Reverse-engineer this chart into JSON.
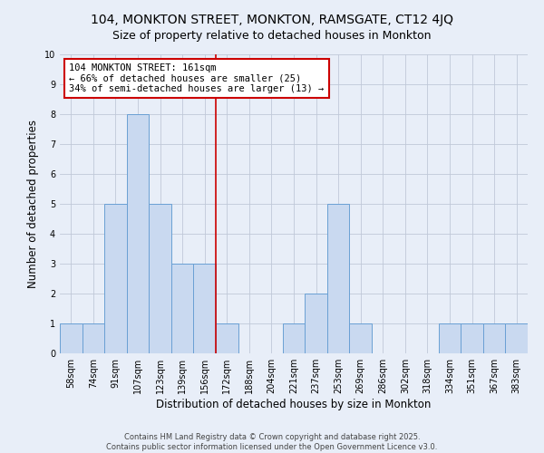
{
  "title": "104, MONKTON STREET, MONKTON, RAMSGATE, CT12 4JQ",
  "subtitle": "Size of property relative to detached houses in Monkton",
  "xlabel": "Distribution of detached houses by size in Monkton",
  "ylabel": "Number of detached properties",
  "bin_labels": [
    "58sqm",
    "74sqm",
    "91sqm",
    "107sqm",
    "123sqm",
    "139sqm",
    "156sqm",
    "172sqm",
    "188sqm",
    "204sqm",
    "221sqm",
    "237sqm",
    "253sqm",
    "269sqm",
    "286sqm",
    "302sqm",
    "318sqm",
    "334sqm",
    "351sqm",
    "367sqm",
    "383sqm"
  ],
  "bar_values": [
    1,
    1,
    5,
    8,
    5,
    3,
    3,
    1,
    0,
    0,
    1,
    2,
    5,
    1,
    0,
    0,
    0,
    1,
    1,
    1,
    1
  ],
  "bar_color": "#c9d9f0",
  "bar_edgecolor": "#6aa0d4",
  "vline_x": 6.5,
  "vline_color": "#cc0000",
  "ylim": [
    0,
    10
  ],
  "yticks": [
    0,
    1,
    2,
    3,
    4,
    5,
    6,
    7,
    8,
    9,
    10
  ],
  "annotation_text": "104 MONKTON STREET: 161sqm\n← 66% of detached houses are smaller (25)\n34% of semi-detached houses are larger (13) →",
  "annotation_box_edgecolor": "#cc0000",
  "annotation_box_facecolor": "#ffffff",
  "grid_color": "#c0c8d8",
  "bg_color": "#e8eef8",
  "footer1": "Contains HM Land Registry data © Crown copyright and database right 2025.",
  "footer2": "Contains public sector information licensed under the Open Government Licence v3.0.",
  "title_fontsize": 10,
  "subtitle_fontsize": 9,
  "axis_label_fontsize": 8.5,
  "tick_fontsize": 7,
  "annotation_fontsize": 7.5,
  "footer_fontsize": 6
}
